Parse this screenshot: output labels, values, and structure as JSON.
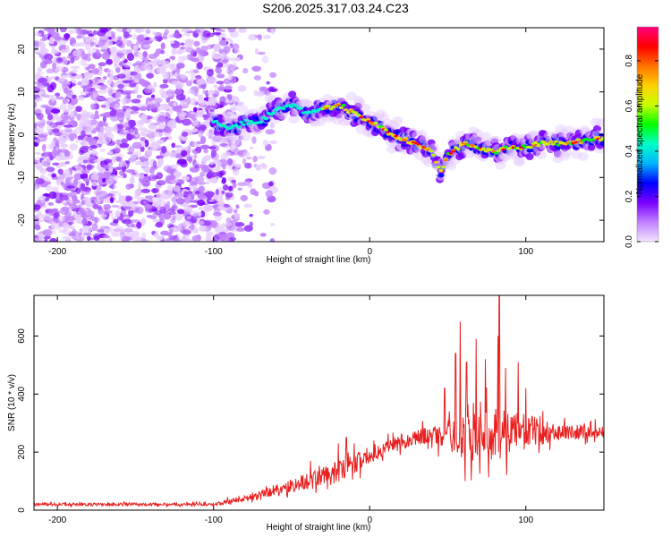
{
  "title": "S206.2025.317.03.24.C23",
  "chart_data": [
    {
      "type": "heatmap",
      "xlabel": "Height of straight line (km)",
      "ylabel": "Frequency (Hz)",
      "xlim": [
        -215,
        150
      ],
      "ylim": [
        -25,
        25
      ],
      "xticks": [
        -200,
        -100,
        0,
        100
      ],
      "yticks": [
        -20,
        -10,
        0,
        10,
        20
      ],
      "colorbar": {
        "label": "Normalized spectral amplitude",
        "range": [
          0,
          0.95
        ],
        "ticks": [
          "0.0",
          "0.2",
          "0.4",
          "0.6",
          "0.8"
        ],
        "colors": [
          "#f4e6ff",
          "#c080ff",
          "#7a00ff",
          "#0000ff",
          "#00b4ff",
          "#00ffc8",
          "#00ff00",
          "#c8ff00",
          "#ffd000",
          "#ff7000",
          "#ff0000",
          "#ff0080"
        ]
      },
      "noise_region_x": [
        -215,
        -85
      ],
      "signal_ridge": {
        "x": [
          -100,
          -90,
          -80,
          -70,
          -60,
          -50,
          -40,
          -30,
          -20,
          -10,
          0,
          10,
          20,
          30,
          40,
          45,
          50,
          60,
          70,
          80,
          90,
          100,
          110,
          120,
          130,
          140,
          150
        ],
        "y": [
          3,
          1,
          3,
          3,
          6,
          7,
          5,
          6,
          7,
          5,
          3,
          1,
          -1,
          -2,
          -4,
          -9,
          -5,
          -2,
          -3,
          -4,
          -3,
          -3,
          -2,
          -2,
          -2,
          -1,
          -1
        ]
      }
    },
    {
      "type": "line",
      "xlabel": "Height of straight line (km)",
      "ylabel": "SNR (10 * v/v)",
      "xlim": [
        -215,
        150
      ],
      "ylim": [
        0,
        740
      ],
      "xticks": [
        -200,
        -100,
        0,
        100
      ],
      "yticks": [
        0,
        200,
        400,
        600
      ],
      "color": "#e82020",
      "envelope": {
        "x": [
          -215,
          -150,
          -100,
          -80,
          -60,
          -40,
          -20,
          0,
          20,
          40,
          60,
          80,
          100,
          120,
          150
        ],
        "mean": [
          20,
          20,
          20,
          40,
          70,
          100,
          130,
          190,
          240,
          260,
          250,
          260,
          270,
          270,
          270
        ],
        "spread": [
          10,
          10,
          10,
          25,
          40,
          60,
          80,
          60,
          50,
          60,
          150,
          180,
          120,
          60,
          40
        ]
      },
      "peaks": [
        {
          "x": -38,
          "y": 170
        },
        {
          "x": -20,
          "y": 230
        },
        {
          "x": -15,
          "y": 250
        },
        {
          "x": 48,
          "y": 420
        },
        {
          "x": 55,
          "y": 540
        },
        {
          "x": 58,
          "y": 650
        },
        {
          "x": 62,
          "y": 510
        },
        {
          "x": 68,
          "y": 590
        },
        {
          "x": 74,
          "y": 520
        },
        {
          "x": 82,
          "y": 600
        },
        {
          "x": 83,
          "y": 740
        },
        {
          "x": 87,
          "y": 490
        },
        {
          "x": 95,
          "y": 510
        },
        {
          "x": 100,
          "y": 420
        }
      ]
    }
  ]
}
